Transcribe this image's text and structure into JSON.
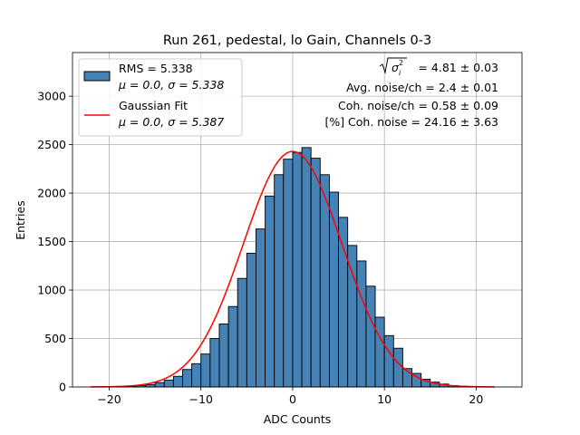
{
  "chart_data": {
    "type": "bar",
    "title": "Run 261, pedestal, lo Gain, Channels 0-3",
    "xlabel": "ADC Counts",
    "ylabel": "Entries",
    "xlim": [
      -24,
      25
    ],
    "ylim": [
      0,
      3450
    ],
    "grid": true,
    "xticks": [
      -20,
      -10,
      0,
      10,
      20
    ],
    "yticks": [
      0,
      500,
      1000,
      1500,
      2000,
      2500,
      3000
    ],
    "bin_width": 1,
    "bins_left": [
      -22,
      -21,
      -20,
      -19,
      -18,
      -17,
      -16,
      -15,
      -14,
      -13,
      -12,
      -11,
      -10,
      -9,
      -8,
      -7,
      -6,
      -5,
      -4,
      -3,
      -2,
      -1,
      0,
      1,
      2,
      3,
      4,
      5,
      6,
      7,
      8,
      9,
      10,
      11,
      12,
      13,
      14,
      15,
      16,
      17,
      18,
      19,
      20,
      21
    ],
    "values": [
      1,
      2,
      3,
      5,
      8,
      14,
      25,
      45,
      70,
      110,
      180,
      240,
      340,
      500,
      650,
      830,
      1120,
      1380,
      1630,
      1970,
      2190,
      2350,
      2420,
      2470,
      2360,
      2190,
      2010,
      1750,
      1460,
      1300,
      1040,
      720,
      530,
      400,
      190,
      140,
      80,
      50,
      30,
      15,
      8,
      4,
      2,
      1
    ],
    "bar_color": "#4682b4",
    "fit": {
      "label": "Gaussian Fit",
      "stats": "μ = 0.0, σ = 5.387",
      "color": "#ff0000",
      "mu": 0.0,
      "sigma": 5.387,
      "amplitude": 2430,
      "x_range": [
        -22,
        22
      ]
    },
    "legend": {
      "position": "top-left",
      "entries": [
        {
          "label": "RMS = 5.338",
          "sub": "μ = 0.0, σ = 5.338",
          "kind": "patch",
          "color": "#4682b4"
        },
        {
          "label": "Gaussian Fit",
          "sub": "μ = 0.0, σ = 5.387",
          "kind": "line",
          "color": "#ff0000"
        }
      ]
    },
    "annotations": {
      "position": "top-right",
      "sigma_value": "= 4.81 ± 0.03",
      "lines": [
        "Avg. noise/ch = 2.4 ± 0.01",
        "Coh. noise/ch = 0.58 ± 0.09",
        "[%] Coh. noise = 24.16 ± 3.63"
      ]
    }
  }
}
